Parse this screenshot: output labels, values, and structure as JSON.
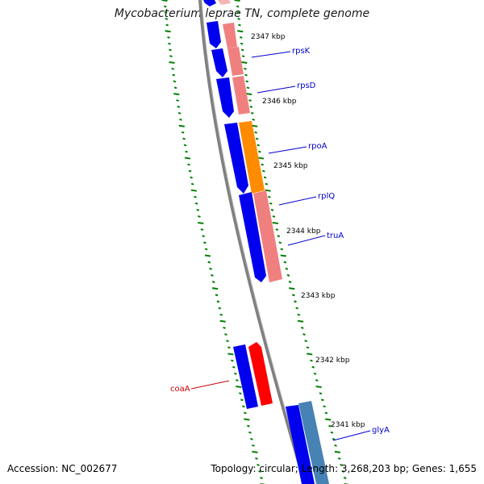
{
  "title": "Mycobacterium leprae TN, complete genome",
  "footer": {
    "accession": "Accession: NC_002677",
    "summary": "Topology: circular; Length: 3,268,203 bp; Genes: 1,655"
  },
  "kbp_labels": [
    "2347 kbp",
    "2346 kbp",
    "2345 kbp",
    "2344 kbp",
    "2343 kbp",
    "2342 kbp",
    "2341 kbp"
  ],
  "gene_labels": [
    {
      "name": "rpsK",
      "color": "#0000cc"
    },
    {
      "name": "rpsD",
      "color": "#0000cc"
    },
    {
      "name": "rpoA",
      "color": "#0000cc"
    },
    {
      "name": "rplQ",
      "color": "#0000cc"
    },
    {
      "name": "truA",
      "color": "#0000cc"
    },
    {
      "name": "coaA",
      "color": "#cc0000"
    },
    {
      "name": "glyA",
      "color": "#0000cc"
    }
  ],
  "colors": {
    "backbone": "#808080",
    "cds": "#0000ee",
    "gene_pink": "#f08080",
    "gene_orange": "#ff8c00",
    "gene_red": "#ff0000",
    "gene_steel": "#4682b4",
    "ticks": "#008000",
    "label_line_blue": "#0000cc",
    "label_line_red": "#cc0000"
  }
}
